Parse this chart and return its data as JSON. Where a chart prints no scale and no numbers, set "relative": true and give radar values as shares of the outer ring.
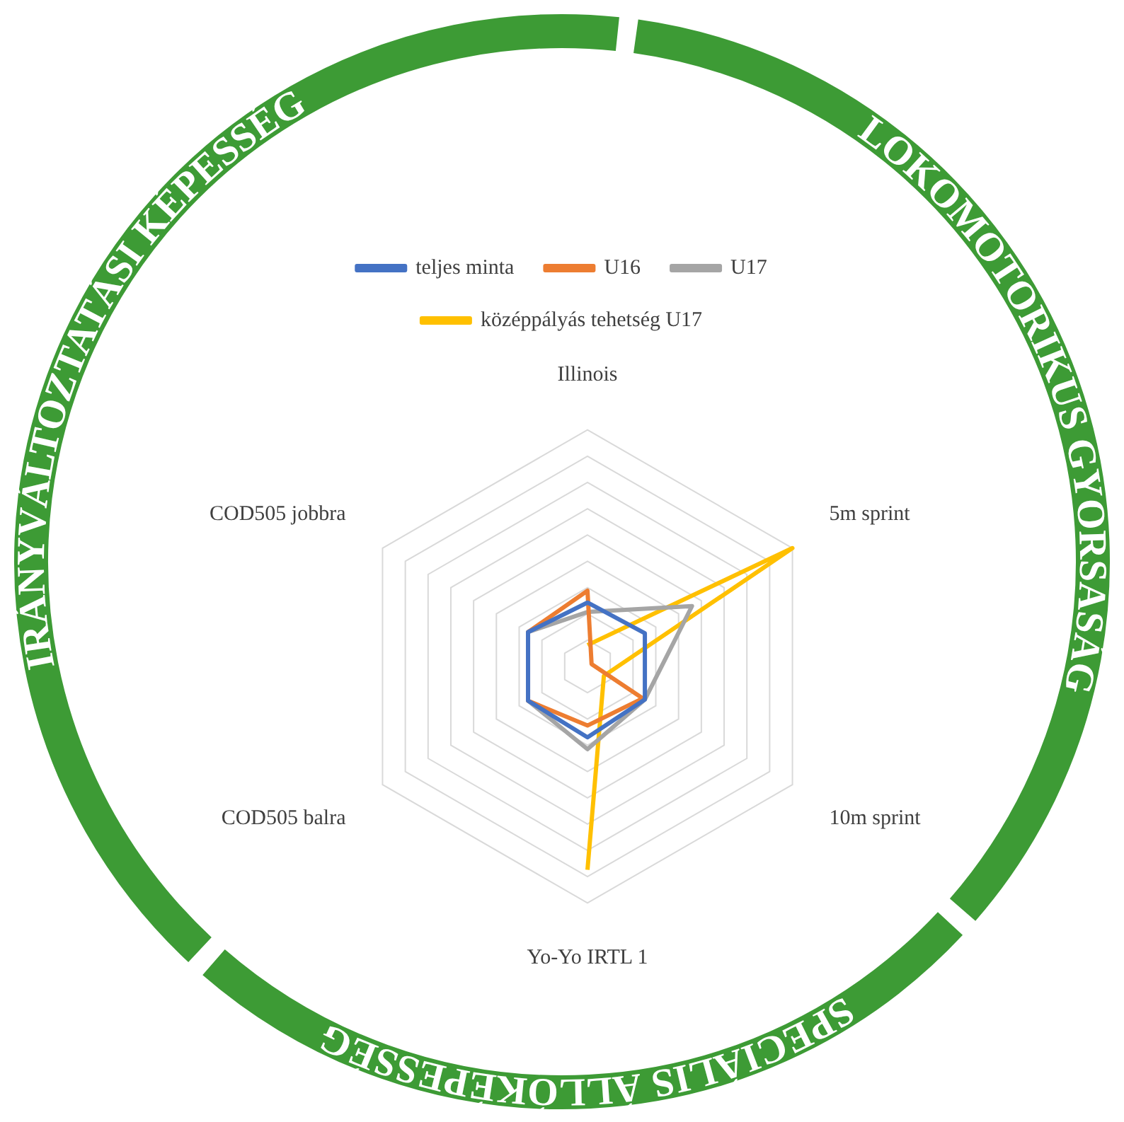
{
  "chart_data": {
    "type": "radar",
    "relative": true,
    "categories": [
      "Illinois",
      "5m sprint",
      "10m sprint",
      "Yo-Yo IRTL 1",
      "COD505 balra",
      "COD505 jobbra"
    ],
    "series": [
      {
        "name": "teljes minta",
        "color": "#4472c4",
        "values": [
          0.27,
          0.28,
          0.28,
          0.3,
          0.29,
          0.29
        ]
      },
      {
        "name": "U16",
        "color": "#ed7d31",
        "values": [
          0.32,
          0.02,
          0.27,
          0.25,
          0.29,
          0.29
        ]
      },
      {
        "name": "U17",
        "color": "#a5a5a5",
        "values": [
          0.23,
          0.51,
          0.28,
          0.35,
          0.29,
          0.29
        ]
      },
      {
        "name": "középpályás tehetség U17",
        "color": "#ffc000",
        "values": [
          0.09,
          1,
          0.08,
          0.86,
          null,
          null
        ]
      }
    ],
    "legend": "top",
    "grid": true,
    "marker": "none",
    "annotations": [
      "IRÁNYVÁLTOZTATÁSI KÉPESSÉG",
      "LOKOMOTORIKUS GYORSASÁG",
      "SPECIÁLIS ÁLLÓKÉPESSÉG"
    ]
  }
}
